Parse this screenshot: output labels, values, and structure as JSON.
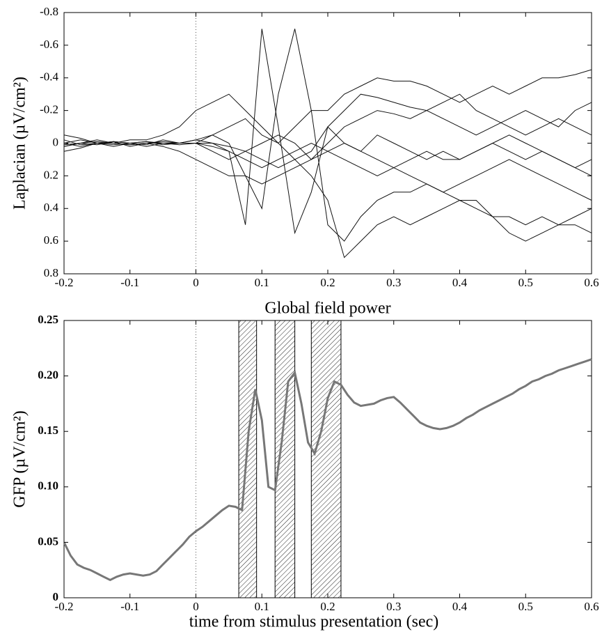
{
  "chart_data": [
    {
      "type": "line",
      "ylabel": "Laplacian (µV/cm²)",
      "y_inverted": true,
      "vline": 0,
      "xlim": [
        -0.2,
        0.6
      ],
      "xticks": [
        -0.2,
        -0.1,
        0,
        0.1,
        0.2,
        0.3,
        0.4,
        0.5,
        0.6
      ],
      "ylim": [
        -0.8,
        0.8
      ],
      "yticks": [
        -0.8,
        -0.6,
        -0.4,
        -0.2,
        0,
        0.2,
        0.4,
        0.6,
        0.8
      ],
      "x": [
        -0.2,
        -0.175,
        -0.15,
        -0.125,
        -0.1,
        -0.075,
        -0.05,
        -0.025,
        0,
        0.025,
        0.05,
        0.075,
        0.1,
        0.125,
        0.15,
        0.175,
        0.2,
        0.225,
        0.25,
        0.275,
        0.3,
        0.325,
        0.35,
        0.375,
        0.4,
        0.425,
        0.45,
        0.475,
        0.5,
        0.525,
        0.55,
        0.575,
        0.6
      ],
      "series": [
        {
          "color": "#111",
          "values": [
            0.02,
            0,
            -0.02,
            0,
            0.01,
            0,
            -0.01,
            0,
            0,
            0,
            0.05,
            0.5,
            -0.7,
            -0.1,
            0.55,
            0.3,
            -0.1,
            0,
            0.05,
            -0.05,
            0,
            0.05,
            0.1,
            0.05,
            0.1,
            0.05,
            0,
            0.05,
            0.1,
            0.05,
            0.1,
            0.15,
            0.1
          ]
        },
        {
          "color": "#111",
          "values": [
            0,
            0.02,
            0,
            -0.01,
            0,
            0.01,
            -0.02,
            0,
            -0.02,
            -0.05,
            0,
            0.2,
            0.4,
            -0.3,
            -0.7,
            -0.2,
            0.5,
            0.6,
            0.45,
            0.35,
            0.3,
            0.3,
            0.25,
            0.3,
            0.35,
            0.4,
            0.45,
            0.45,
            0.5,
            0.45,
            0.5,
            0.5,
            0.55
          ]
        },
        {
          "color": "#111",
          "values": [
            -0.05,
            -0.03,
            0,
            0,
            -0.02,
            -0.02,
            -0.05,
            -0.1,
            -0.2,
            -0.25,
            -0.3,
            -0.2,
            -0.1,
            0,
            0.1,
            0.2,
            0.35,
            0.7,
            0.6,
            0.5,
            0.45,
            0.5,
            0.45,
            0.4,
            0.35,
            0.35,
            0.45,
            0.55,
            0.6,
            0.55,
            0.5,
            0.45,
            0.4
          ]
        },
        {
          "color": "#111",
          "values": [
            0.05,
            0.03,
            0,
            0.02,
            0,
            -0.01,
            0,
            0,
            0,
            -0.05,
            -0.1,
            -0.15,
            -0.05,
            0,
            -0.1,
            -0.2,
            -0.2,
            -0.3,
            -0.35,
            -0.4,
            -0.38,
            -0.38,
            -0.35,
            -0.3,
            -0.25,
            -0.3,
            -0.35,
            -0.3,
            -0.35,
            -0.4,
            -0.4,
            -0.42,
            -0.45
          ]
        },
        {
          "color": "#111",
          "values": [
            -0.02,
            0.01,
            0,
            -0.01,
            0.02,
            0,
            0.02,
            0.05,
            0.1,
            0.15,
            0.2,
            0.2,
            0.25,
            0.2,
            0.15,
            0.1,
            0.05,
            0,
            0.05,
            0.1,
            0.15,
            0.2,
            0.25,
            0.3,
            0.25,
            0.2,
            0.15,
            0.1,
            0.15,
            0.2,
            0.25,
            0.3,
            0.35
          ]
        },
        {
          "color": "#111",
          "values": [
            0.02,
            0,
            0.01,
            -0.01,
            0,
            0.02,
            0,
            0.01,
            0,
            0.05,
            0.1,
            0.05,
            0,
            -0.05,
            0,
            0.1,
            0,
            -0.1,
            -0.15,
            -0.2,
            -0.18,
            -0.15,
            -0.2,
            -0.15,
            -0.1,
            -0.05,
            -0.1,
            -0.15,
            -0.2,
            -0.15,
            -0.1,
            -0.2,
            -0.25
          ]
        },
        {
          "color": "#111",
          "values": [
            0,
            -0.02,
            0,
            0.01,
            0,
            -0.01,
            0.01,
            0,
            -0.02,
            0,
            0.02,
            0.05,
            0.1,
            0.15,
            0.1,
            0.05,
            -0.1,
            -0.2,
            -0.3,
            -0.28,
            -0.25,
            -0.22,
            -0.2,
            -0.25,
            -0.3,
            -0.2,
            -0.15,
            -0.1,
            -0.05,
            -0.1,
            -0.15,
            -0.1,
            -0.05
          ]
        },
        {
          "color": "#111",
          "values": [
            0.01,
            0,
            -0.01,
            0,
            0.01,
            0,
            0,
            0,
            0,
            0.02,
            0.05,
            0.1,
            0.15,
            0.1,
            0.05,
            0,
            0.05,
            0.1,
            0.15,
            0.2,
            0.15,
            0.1,
            0.05,
            0.1,
            0.1,
            0.05,
            0,
            -0.05,
            0,
            0.05,
            0.1,
            0.15,
            0.2
          ]
        }
      ]
    },
    {
      "type": "line",
      "title": "Global field power",
      "ylabel": "GFP (µV/cm²)",
      "xlabel": "time from stimulus presentation (sec)",
      "vline": 0,
      "xlim": [
        -0.2,
        0.6
      ],
      "xticks": [
        -0.2,
        -0.1,
        0,
        0.1,
        0.2,
        0.3,
        0.4,
        0.5,
        0.6
      ],
      "ylim": [
        0,
        0.25
      ],
      "yticks": [
        0,
        0.05,
        {
          "value": 0.1,
          "label": "0.10"
        },
        0.15,
        {
          "value": 0.2,
          "label": "0.20"
        },
        0.25
      ],
      "bands": [
        [
          0.065,
          0.092
        ],
        [
          0.12,
          0.15
        ],
        [
          0.175,
          0.22
        ]
      ],
      "x": [
        -0.2,
        -0.19,
        -0.18,
        -0.17,
        -0.16,
        -0.15,
        -0.14,
        -0.13,
        -0.12,
        -0.11,
        -0.1,
        -0.09,
        -0.08,
        -0.07,
        -0.06,
        -0.05,
        -0.04,
        -0.03,
        -0.02,
        -0.01,
        0,
        0.01,
        0.02,
        0.03,
        0.04,
        0.05,
        0.06,
        0.07,
        0.08,
        0.09,
        0.1,
        0.11,
        0.12,
        0.13,
        0.14,
        0.15,
        0.16,
        0.17,
        0.18,
        0.19,
        0.2,
        0.21,
        0.22,
        0.23,
        0.24,
        0.25,
        0.26,
        0.27,
        0.28,
        0.29,
        0.3,
        0.31,
        0.32,
        0.33,
        0.34,
        0.35,
        0.36,
        0.37,
        0.38,
        0.39,
        0.4,
        0.41,
        0.42,
        0.43,
        0.44,
        0.45,
        0.46,
        0.47,
        0.48,
        0.49,
        0.5,
        0.51,
        0.52,
        0.53,
        0.54,
        0.55,
        0.56,
        0.57,
        0.58,
        0.59,
        0.6
      ],
      "series": [
        {
          "color": "#777",
          "values": [
            0.05,
            0.038,
            0.03,
            0.027,
            0.025,
            0.022,
            0.019,
            0.016,
            0.019,
            0.021,
            0.022,
            0.021,
            0.02,
            0.021,
            0.024,
            0.03,
            0.036,
            0.042,
            0.048,
            0.055,
            0.06,
            0.064,
            0.069,
            0.074,
            0.079,
            0.083,
            0.082,
            0.079,
            0.15,
            0.188,
            0.16,
            0.1,
            0.097,
            0.14,
            0.195,
            0.203,
            0.175,
            0.14,
            0.13,
            0.15,
            0.18,
            0.195,
            0.192,
            0.183,
            0.176,
            0.173,
            0.174,
            0.175,
            0.178,
            0.18,
            0.181,
            0.176,
            0.17,
            0.164,
            0.158,
            0.155,
            0.153,
            0.152,
            0.153,
            0.155,
            0.158,
            0.162,
            0.165,
            0.169,
            0.172,
            0.175,
            0.178,
            0.181,
            0.184,
            0.188,
            0.191,
            0.195,
            0.197,
            0.2,
            0.202,
            0.205,
            0.207,
            0.209,
            0.211,
            0.213,
            0.215
          ]
        }
      ]
    }
  ]
}
